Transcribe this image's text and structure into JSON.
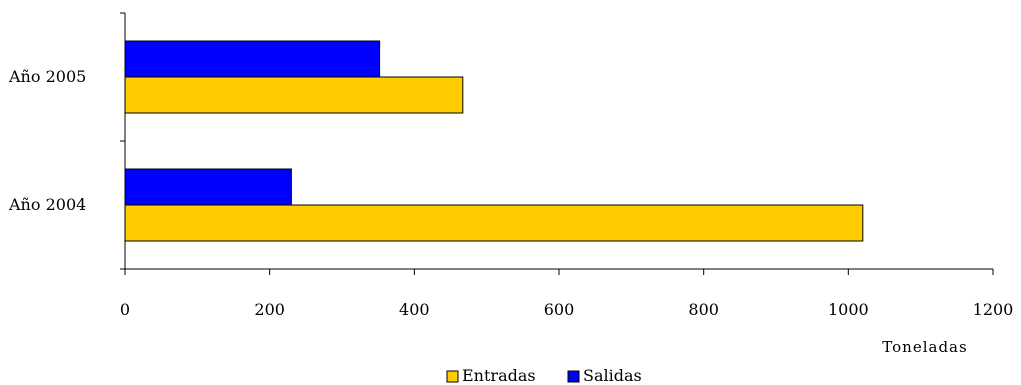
{
  "chart_data": {
    "type": "bar",
    "orientation": "horizontal",
    "categories": [
      "Año 2004",
      "Año 2005"
    ],
    "series": [
      {
        "name": "Entradas",
        "values": [
          1020,
          467
        ],
        "color": "#FFCC00"
      },
      {
        "name": "Salidas",
        "values": [
          230,
          352
        ],
        "color": "#0000FF"
      }
    ],
    "xlabel": "Toneladas",
    "ylabel": "",
    "xlim": [
      0,
      1200
    ],
    "xticks": [
      0,
      200,
      400,
      600,
      800,
      1000,
      1200
    ],
    "xtick_labels": [
      "0",
      "200",
      "400",
      "600",
      "800",
      "1000",
      "1200"
    ],
    "grid": false,
    "legend": {
      "position": "bottom",
      "items": [
        "Entradas",
        "Salidas"
      ]
    }
  }
}
